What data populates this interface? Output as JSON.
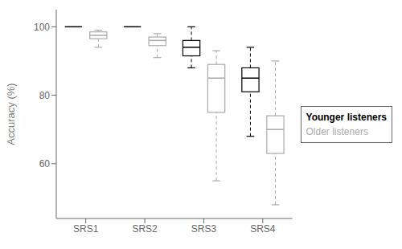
{
  "chart_data": {
    "type": "box",
    "categories": [
      "SRS1",
      "SRS2",
      "SRS3",
      "SRS4"
    ],
    "ylabel": "Accuracy (%)",
    "ylim": [
      44,
      105
    ],
    "yticks": [
      60,
      80,
      100
    ],
    "grid": false,
    "legend": "right",
    "series": [
      {
        "name": "Younger listeners",
        "color": "black",
        "line_style": "dashed",
        "boxes": [
          {
            "whislo": 100,
            "q1": 100,
            "med": 100,
            "q3": 100,
            "whishi": 100
          },
          {
            "whislo": 100,
            "q1": 100,
            "med": 100,
            "q3": 100,
            "whishi": 100
          },
          {
            "whislo": 88,
            "q1": 91.5,
            "med": 94,
            "q3": 96,
            "whishi": 100
          },
          {
            "whislo": 68,
            "q1": 81,
            "med": 85,
            "q3": 88,
            "whishi": 94
          }
        ]
      },
      {
        "name": "Older listeners",
        "color": "#aaaaaa",
        "line_style": "dashed",
        "boxes": [
          {
            "whislo": 94,
            "q1": 96.5,
            "med": 97.5,
            "q3": 98.5,
            "whishi": 99
          },
          {
            "whislo": 91,
            "q1": 94.5,
            "med": 96,
            "q3": 97,
            "whishi": 98
          },
          {
            "whislo": 55,
            "q1": 75,
            "med": 85,
            "q3": 89,
            "whishi": 93
          },
          {
            "whislo": 48,
            "q1": 63,
            "med": 70,
            "q3": 74,
            "whishi": 90
          }
        ]
      }
    ]
  }
}
